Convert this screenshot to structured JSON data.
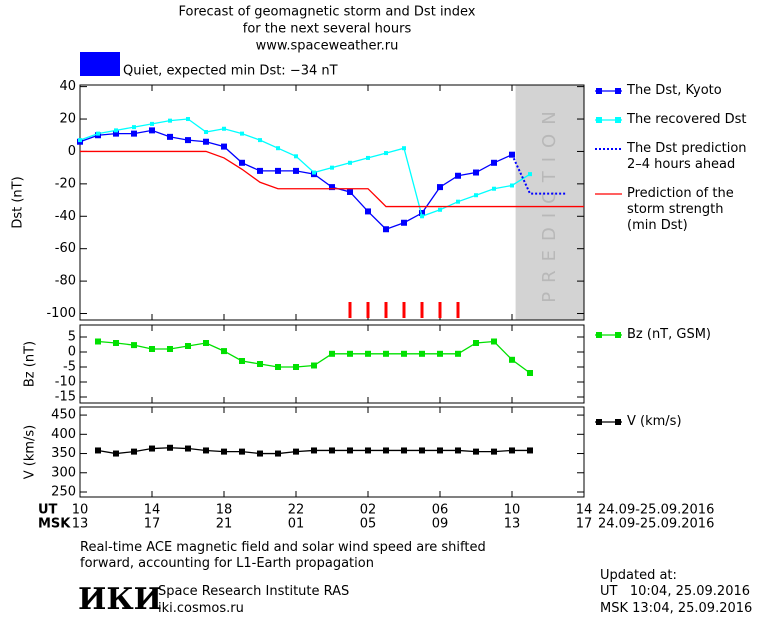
{
  "header": {
    "title": "Forecast of geomagnetic storm and Dst index",
    "subtitle": "for the next several hours",
    "url": "www.spaceweather.ru"
  },
  "status": {
    "text": "Quiet, expected min Dst: −34 nT",
    "color": "#0000ff"
  },
  "chart_data": [
    {
      "type": "line",
      "ylabel": "Dst (nT)",
      "xlim": [
        0,
        28
      ],
      "ylim": [
        -104,
        41
      ],
      "yticks": [
        -100,
        -80,
        -60,
        -40,
        -20,
        0,
        20,
        40
      ],
      "band": {
        "label": "PREDICTION",
        "x": [
          24.2,
          28
        ],
        "color": "#d3d3d3"
      },
      "series": [
        {
          "name": "The Dst, Kyoto",
          "color": "#0000ff",
          "marker": "square",
          "dash": false,
          "x": [
            0,
            1,
            2,
            3,
            4,
            5,
            6,
            7,
            8,
            9,
            10,
            11,
            12,
            13,
            14,
            15,
            16,
            17,
            18,
            19,
            20,
            21,
            22,
            23,
            24
          ],
          "values": [
            6,
            10,
            11,
            11,
            13,
            9,
            7,
            6,
            3,
            -7,
            -12,
            -12,
            -12,
            -14,
            -22,
            -25,
            -37,
            -48,
            -44,
            -38,
            -22,
            -15,
            -13,
            -7,
            -2
          ]
        },
        {
          "name": "The recovered Dst",
          "color": "#00ffff",
          "marker": "square",
          "dash": false,
          "x": [
            0,
            1,
            2,
            3,
            4,
            5,
            6,
            7,
            8,
            9,
            10,
            11,
            12,
            13,
            14,
            15,
            16,
            17,
            18,
            19,
            20,
            21,
            22,
            23,
            24,
            25
          ],
          "values": [
            7,
            11,
            13,
            15,
            17,
            19,
            20,
            12,
            14,
            11,
            7,
            2,
            -3,
            -13,
            -10,
            -7,
            -4,
            -1,
            2,
            -40,
            -36,
            -31,
            -27,
            -23,
            -21,
            -14
          ]
        },
        {
          "name": "The Dst prediction\n2–4 hours ahead",
          "color": "#0000ff",
          "marker": "none",
          "dash": true,
          "x": [
            24,
            25,
            27
          ],
          "values": [
            -2,
            -26,
            -26
          ]
        },
        {
          "name": "Prediction of the\nstorm strength\n(min Dst)",
          "color": "#ff0000",
          "marker": "none",
          "dash": false,
          "x": [
            0,
            7,
            8,
            9,
            10,
            11,
            16,
            17,
            28
          ],
          "values": [
            0,
            0,
            -4,
            -11,
            -19,
            -23,
            -23,
            -34,
            -34
          ]
        }
      ],
      "alerts": {
        "x": [
          15,
          16,
          17,
          18,
          19,
          20,
          21
        ],
        "color": "#ff0000"
      }
    },
    {
      "type": "line",
      "ylabel": "Bz (nT)",
      "xlim": [
        0,
        28
      ],
      "ylim": [
        -17,
        9
      ],
      "yticks": [
        -15,
        -10,
        -5,
        0,
        5
      ],
      "series": [
        {
          "name": "Bz (nT, GSM)",
          "color": "#00e000",
          "marker": "square",
          "dash": false,
          "x": [
            1,
            2,
            3,
            4,
            5,
            6,
            7,
            8,
            9,
            10,
            11,
            12,
            13,
            14,
            15,
            16,
            17,
            18,
            19,
            20,
            21,
            22,
            23,
            24,
            25
          ],
          "values": [
            3.5,
            3,
            2.3,
            1,
            1,
            2,
            3,
            0.3,
            -3,
            -4,
            -5,
            -5,
            -4.5,
            -0.6,
            -0.6,
            -0.6,
            -0.6,
            -0.6,
            -0.6,
            -0.6,
            -0.6,
            3,
            3.5,
            -2.6,
            -7
          ]
        }
      ]
    },
    {
      "type": "line",
      "ylabel": "V (km/s)",
      "xlim": [
        0,
        28
      ],
      "ylim": [
        237,
        471
      ],
      "yticks": [
        250,
        300,
        350,
        400,
        450
      ],
      "series": [
        {
          "name": "V (km/s)",
          "color": "#000000",
          "marker": "square",
          "dash": false,
          "x": [
            1,
            2,
            3,
            4,
            5,
            6,
            7,
            8,
            9,
            10,
            11,
            12,
            13,
            14,
            15,
            16,
            17,
            18,
            19,
            20,
            21,
            22,
            23,
            24,
            25
          ],
          "values": [
            358,
            350,
            355,
            363,
            365,
            363,
            358,
            355,
            355,
            350,
            350,
            355,
            358,
            358,
            358,
            358,
            358,
            358,
            358,
            358,
            358,
            355,
            355,
            358,
            358
          ]
        }
      ],
      "xrow_label": "UT",
      "xdate": "24.09-25.09.2016",
      "xticks": [
        {
          "value": 0,
          "label": "10"
        },
        {
          "value": 4,
          "label": "14"
        },
        {
          "value": 8,
          "label": "18"
        },
        {
          "value": 12,
          "label": "22"
        },
        {
          "value": 16,
          "label": "02"
        },
        {
          "value": 20,
          "label": "06"
        },
        {
          "value": 24,
          "label": "10"
        },
        {
          "value": 28,
          "label": "14"
        }
      ],
      "x2row_label": "MSK",
      "x2date": "24.09-25.09.2016",
      "x2ticks": [
        {
          "value": 0,
          "label": "13"
        },
        {
          "value": 4,
          "label": "17"
        },
        {
          "value": 8,
          "label": "21"
        },
        {
          "value": 12,
          "label": "01"
        },
        {
          "value": 16,
          "label": "05"
        },
        {
          "value": 20,
          "label": "09"
        },
        {
          "value": 24,
          "label": "13"
        },
        {
          "value": 28,
          "label": "17"
        }
      ]
    }
  ],
  "footer": {
    "note": "Real-time ACE magnetic field and solar wind speed are shifted\nforward, accounting for L1-Earth propagation",
    "logo": "ИКИ",
    "institute": "Space Research Institute RAS",
    "site": "iki.cosmos.ru",
    "updated_label": "Updated at:",
    "updated_ut": "UT   10:04, 25.09.2016",
    "updated_msk": "MSK 13:04, 25.09.2016"
  }
}
